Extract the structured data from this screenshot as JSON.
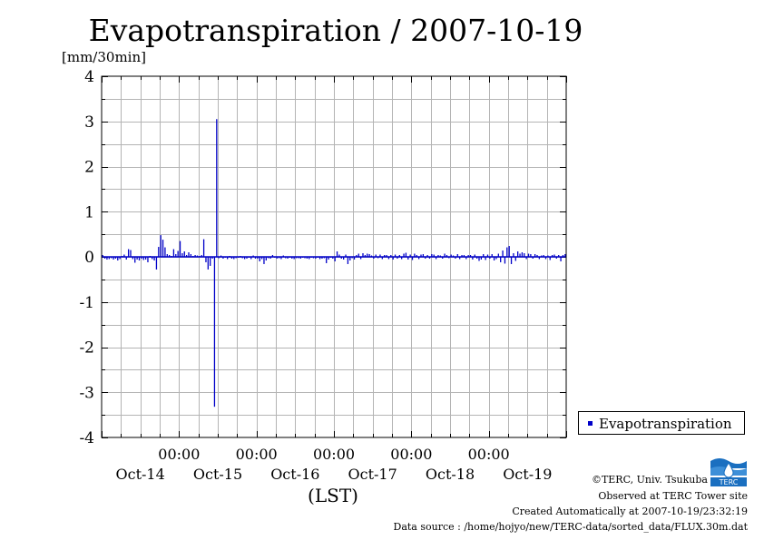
{
  "title": "Evapotranspiration / 2007-10-19",
  "unit_label": "[mm/30min]",
  "x_unit_label": "(LST)",
  "legend": {
    "label": "Evapotranspiration",
    "color": "#0000c8"
  },
  "credits": {
    "copyright": "©TERC, Univ. Tsukuba",
    "observed": "Observed at TERC Tower site",
    "created": "Created Automatically at 2007-10-19/23:32:19",
    "source": "Data source : /home/hojyo/new/TERC-data/sorted_data/FLUX.30m.dat"
  },
  "logo": {
    "text": "TERC",
    "color": "#1a6fc0"
  },
  "chart_data": {
    "type": "bar",
    "y_range": [
      -4,
      4
    ],
    "y_ticks": [
      "4",
      "3",
      "2",
      "1",
      "0",
      "-1",
      "-2",
      "-3",
      "-4"
    ],
    "x_range_days": [
      0,
      6
    ],
    "x_time_labels": [
      "00:00",
      "00:00",
      "00:00",
      "00:00",
      "00:00"
    ],
    "x_date_labels": [
      "Oct-14",
      "Oct-15",
      "Oct-16",
      "Oct-17",
      "Oct-18",
      "Oct-19"
    ],
    "grid": true,
    "legend_position": "bottom-right",
    "series": [
      {
        "name": "Evapotranspiration",
        "color": "#0000c8",
        "values": [
          0.04,
          -0.04,
          -0.06,
          -0.05,
          -0.03,
          -0.06,
          -0.04,
          -0.08,
          -0.05,
          0.02,
          0.05,
          -0.06,
          0.17,
          0.15,
          -0.05,
          -0.13,
          -0.06,
          -0.08,
          -0.04,
          -0.07,
          -0.06,
          -0.12,
          0.02,
          -0.05,
          -0.08,
          -0.28,
          0.22,
          0.48,
          0.38,
          0.21,
          0.06,
          0.04,
          0.02,
          0.17,
          0.06,
          0.13,
          0.35,
          0.08,
          0.12,
          0.04,
          0.1,
          0.06,
          0.02,
          0.04,
          0.03,
          0.02,
          0.04,
          0.39,
          -0.12,
          -0.28,
          -0.2,
          -0.04,
          -3.32,
          3.05,
          -0.03,
          0.03,
          -0.04,
          -0.02,
          -0.05,
          0.02,
          -0.04,
          -0.05,
          -0.03,
          -0.02,
          0.02,
          -0.03,
          -0.05,
          -0.04,
          -0.02,
          -0.05,
          0.03,
          -0.04,
          -0.04,
          -0.1,
          -0.05,
          -0.16,
          -0.08,
          -0.03,
          -0.04,
          0.04,
          -0.02,
          -0.04,
          -0.03,
          -0.05,
          0.03,
          -0.03,
          -0.04,
          -0.02,
          -0.04,
          -0.05,
          -0.03,
          -0.03,
          -0.04,
          -0.02,
          -0.03,
          -0.04,
          -0.05,
          -0.02,
          -0.03,
          -0.04,
          -0.02,
          -0.05,
          -0.04,
          -0.03,
          -0.14,
          -0.06,
          -0.02,
          -0.04,
          -0.1,
          0.12,
          0.05,
          -0.04,
          -0.06,
          0.05,
          -0.16,
          -0.08,
          -0.03,
          -0.06,
          0.04,
          0.07,
          -0.05,
          0.08,
          0.04,
          0.07,
          0.06,
          0.03,
          -0.04,
          0.05,
          -0.03,
          0.05,
          -0.05,
          0.04,
          0.04,
          -0.05,
          0.04,
          -0.06,
          0.05,
          -0.04,
          0.04,
          -0.05,
          0.07,
          0.09,
          -0.06,
          0.05,
          -0.07,
          0.07,
          0.04,
          -0.05,
          0.05,
          0.06,
          -0.04,
          0.04,
          -0.04,
          0.06,
          0.05,
          -0.05,
          0.04,
          0.03,
          -0.04,
          0.07,
          0.04,
          -0.03,
          0.05,
          0.03,
          -0.04,
          0.06,
          -0.05,
          0.04,
          0.04,
          -0.05,
          0.04,
          0.04,
          -0.06,
          0.05,
          -0.04,
          -0.09,
          -0.06,
          0.06,
          -0.07,
          0.05,
          -0.04,
          0.06,
          -0.08,
          -0.05,
          0.07,
          -0.12,
          0.14,
          -0.15,
          0.21,
          0.24,
          -0.16,
          0.08,
          -0.09,
          0.12,
          0.07,
          0.1,
          0.08,
          -0.05,
          0.07,
          0.06,
          -0.04,
          0.06,
          0.04,
          -0.05,
          0.03,
          0.04,
          -0.05,
          0.03,
          -0.07,
          0.04,
          0.05,
          -0.04,
          0.04,
          -0.1,
          0.04,
          0.06
        ]
      }
    ]
  }
}
